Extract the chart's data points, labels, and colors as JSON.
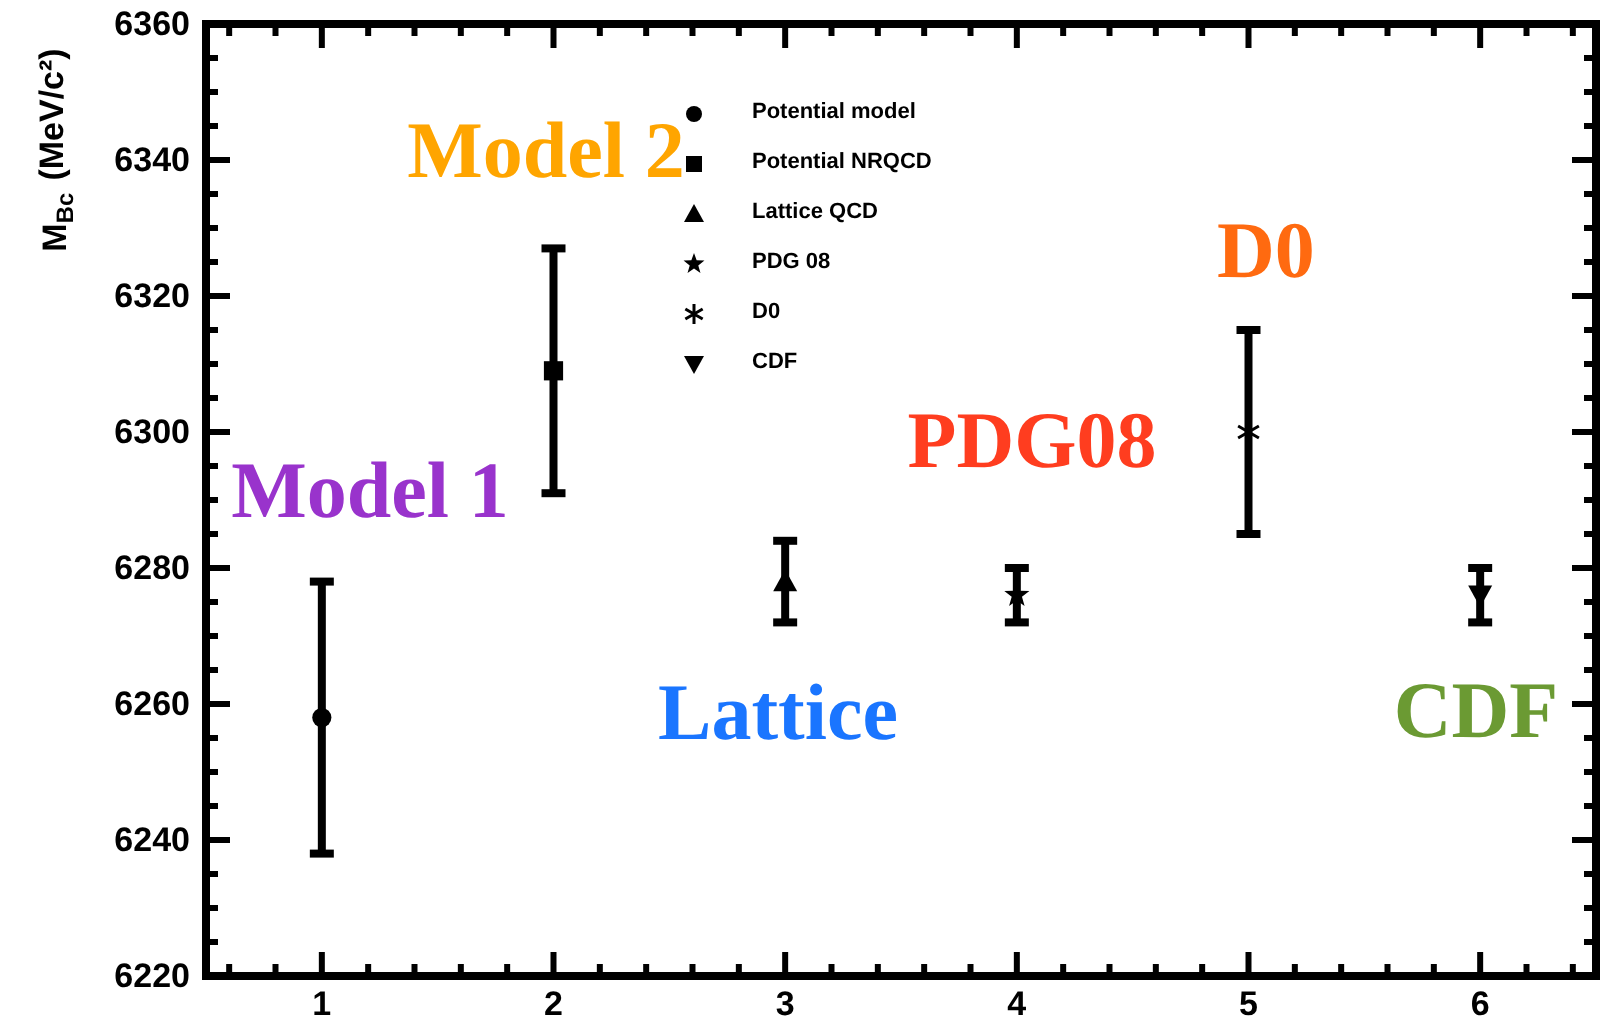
{
  "chart_data": {
    "type": "scatter",
    "ylabel": "M$_{Bc}$ (MeV/c²)",
    "xlim": [
      0.5,
      6.5
    ],
    "xticks": [
      {
        "value": 0.6,
        "label": null
      },
      {
        "value": 0.8,
        "label": null
      },
      1,
      {
        "value": 1.2,
        "label": null
      },
      {
        "value": 1.4,
        "label": null
      },
      {
        "value": 1.6,
        "label": null
      },
      {
        "value": 1.8,
        "label": null
      },
      2,
      {
        "value": 2.2,
        "label": null
      },
      {
        "value": 2.4,
        "label": null
      },
      {
        "value": 2.6,
        "label": null
      },
      {
        "value": 2.8,
        "label": null
      },
      3,
      {
        "value": 3.2,
        "label": null
      },
      {
        "value": 3.4,
        "label": null
      },
      {
        "value": 3.6,
        "label": null
      },
      {
        "value": 3.8,
        "label": null
      },
      4,
      {
        "value": 4.2,
        "label": null
      },
      {
        "value": 4.4,
        "label": null
      },
      {
        "value": 4.6,
        "label": null
      },
      {
        "value": 4.8,
        "label": null
      },
      5,
      {
        "value": 5.2,
        "label": null
      },
      {
        "value": 5.4,
        "label": null
      },
      {
        "value": 5.6,
        "label": null
      },
      {
        "value": 5.8,
        "label": null
      },
      6,
      {
        "value": 6.2,
        "label": null
      },
      {
        "value": 6.4,
        "label": null
      }
    ],
    "ylim": [
      6220,
      6360
    ],
    "yticks": [
      6220,
      {
        "value": 6225,
        "label": null
      },
      {
        "value": 6230,
        "label": null
      },
      {
        "value": 6235,
        "label": null
      },
      6240,
      {
        "value": 6245,
        "label": null
      },
      {
        "value": 6250,
        "label": null
      },
      {
        "value": 6255,
        "label": null
      },
      6260,
      {
        "value": 6265,
        "label": null
      },
      {
        "value": 6270,
        "label": null
      },
      {
        "value": 6275,
        "label": null
      },
      6280,
      {
        "value": 6285,
        "label": null
      },
      {
        "value": 6290,
        "label": null
      },
      {
        "value": 6295,
        "label": null
      },
      6300,
      {
        "value": 6305,
        "label": null
      },
      {
        "value": 6310,
        "label": null
      },
      {
        "value": 6315,
        "label": null
      },
      6320,
      {
        "value": 6325,
        "label": null
      },
      {
        "value": 6330,
        "label": null
      },
      {
        "value": 6335,
        "label": null
      },
      6340,
      {
        "value": 6345,
        "label": null
      },
      {
        "value": 6350,
        "label": null
      },
      {
        "value": 6355,
        "label": null
      },
      6360
    ],
    "legend": "top",
    "series": [
      {
        "name": "Potential model",
        "color": "#000000",
        "marker": "circle",
        "x": [
          1
        ],
        "values": [
          6258
        ],
        "errors": [
          20
        ]
      },
      {
        "name": "Potential NRQCD",
        "color": "#000000",
        "marker": "square",
        "x": [
          2
        ],
        "values": [
          6309
        ],
        "errors": [
          18
        ]
      },
      {
        "name": "Lattice QCD",
        "color": "#000000",
        "marker": "triangle",
        "x": [
          3
        ],
        "values": [
          6278
        ],
        "errors": [
          6
        ]
      },
      {
        "name": "PDG 08",
        "color": "#000000",
        "marker": "star",
        "x": [
          4
        ],
        "values": [
          6276
        ],
        "errors": [
          4
        ]
      },
      {
        "name": "D0",
        "color": "#000000",
        "marker": "cross",
        "x": [
          5
        ],
        "values": [
          6300
        ],
        "errors": [
          15
        ]
      },
      {
        "name": "CDF",
        "color": "#000000",
        "marker": "triangle-down",
        "x": [
          6
        ],
        "values": [
          6276
        ],
        "errors": [
          4
        ]
      }
    ],
    "annotations": [
      "Model 1",
      "Model 2",
      "Lattice",
      "PDG08",
      "D0",
      "CDF"
    ]
  }
}
